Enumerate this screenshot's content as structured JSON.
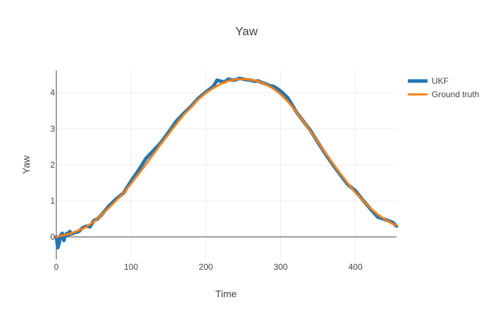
{
  "chart_data": {
    "type": "line",
    "title": "Yaw",
    "xlabel": "Time",
    "ylabel": "Yaw",
    "xlim": [
      0,
      455
    ],
    "ylim": [
      -0.62,
      4.62
    ],
    "xticks": [
      0,
      100,
      200,
      300,
      400
    ],
    "yticks": [
      0,
      1,
      2,
      3,
      4
    ],
    "grid": true,
    "legend": "top-right",
    "series": [
      {
        "name": "UKF",
        "color": "#1f77b4",
        "x": [
          0,
          2,
          4,
          6,
          8,
          10,
          12,
          14,
          16,
          18,
          20,
          25,
          30,
          35,
          40,
          45,
          50,
          55,
          60,
          70,
          80,
          90,
          100,
          110,
          120,
          130,
          140,
          150,
          160,
          170,
          180,
          190,
          200,
          210,
          215,
          220,
          225,
          230,
          235,
          240,
          245,
          250,
          255,
          260,
          265,
          270,
          275,
          280,
          285,
          290,
          295,
          300,
          310,
          320,
          330,
          340,
          350,
          360,
          370,
          380,
          390,
          400,
          410,
          420,
          430,
          440,
          450,
          455
        ],
        "y": [
          0.0,
          -0.3,
          -0.15,
          0.05,
          0.1,
          -0.1,
          0.05,
          0.1,
          0.05,
          0.15,
          0.08,
          0.12,
          0.15,
          0.25,
          0.3,
          0.28,
          0.45,
          0.5,
          0.6,
          0.85,
          1.05,
          1.22,
          1.55,
          1.85,
          2.18,
          2.4,
          2.62,
          2.9,
          3.2,
          3.42,
          3.62,
          3.85,
          4.02,
          4.18,
          4.35,
          4.32,
          4.3,
          4.38,
          4.35,
          4.36,
          4.4,
          4.38,
          4.36,
          4.35,
          4.32,
          4.33,
          4.28,
          4.25,
          4.2,
          4.18,
          4.12,
          4.05,
          3.85,
          3.5,
          3.22,
          2.95,
          2.62,
          2.3,
          2.0,
          1.72,
          1.45,
          1.28,
          1.02,
          0.78,
          0.55,
          0.48,
          0.4,
          0.3
        ]
      },
      {
        "name": "Ground truth",
        "color": "#ff7f0e",
        "x": [
          0,
          10,
          20,
          30,
          40,
          50,
          60,
          70,
          80,
          90,
          100,
          110,
          120,
          130,
          140,
          150,
          160,
          170,
          180,
          190,
          200,
          210,
          220,
          230,
          240,
          250,
          260,
          270,
          280,
          290,
          300,
          310,
          320,
          330,
          340,
          350,
          360,
          370,
          380,
          390,
          400,
          410,
          420,
          430,
          440,
          450,
          455
        ],
        "y": [
          0.0,
          0.05,
          0.1,
          0.18,
          0.28,
          0.42,
          0.6,
          0.8,
          1.01,
          1.22,
          1.48,
          1.75,
          2.02,
          2.3,
          2.58,
          2.85,
          3.12,
          3.38,
          3.6,
          3.82,
          4.0,
          4.13,
          4.25,
          4.33,
          4.37,
          4.38,
          4.36,
          4.32,
          4.24,
          4.12,
          3.96,
          3.75,
          3.5,
          3.22,
          2.93,
          2.63,
          2.33,
          2.03,
          1.75,
          1.48,
          1.23,
          1.01,
          0.8,
          0.62,
          0.48,
          0.36,
          0.32
        ]
      }
    ]
  }
}
